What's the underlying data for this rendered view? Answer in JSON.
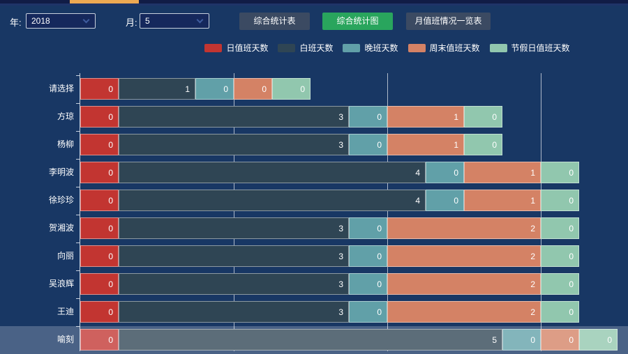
{
  "toolbar": {
    "year_label": "年:",
    "year_value": "2018",
    "month_label": "月:",
    "month_value": "5",
    "buttons": [
      {
        "label": "综合统计表",
        "active": false
      },
      {
        "label": "综合统计图",
        "active": true
      },
      {
        "label": "月值班情况一览表",
        "active": false
      }
    ]
  },
  "colors": {
    "background": "#183764",
    "active_tab": "#eda952",
    "active_button": "#29a55d",
    "button": "#3b4a62"
  },
  "chart_data": {
    "type": "bar",
    "orientation": "horizontal",
    "stacked": true,
    "legend_position": "top",
    "grid": true,
    "x_gridlines_units": [
      2,
      4,
      6
    ],
    "xlim": [
      0,
      7.15
    ],
    "categories": [
      "请选择",
      "方琼",
      "杨柳",
      "李明波",
      "徐珍珍",
      "贺湘波",
      "向丽",
      "吴浪辉",
      "王迪",
      "喻刻"
    ],
    "series": [
      {
        "name": "日值班天数",
        "color": "#c23531",
        "values": [
          0,
          0,
          0,
          0,
          0,
          0,
          0,
          0,
          0,
          0
        ]
      },
      {
        "name": "白班天数",
        "color": "#2f4554",
        "values": [
          1,
          3,
          3,
          4,
          4,
          3,
          3,
          3,
          3,
          5
        ]
      },
      {
        "name": "晚班天数",
        "color": "#61a0a8",
        "values": [
          0,
          0,
          0,
          0,
          0,
          0,
          0,
          0,
          0,
          0
        ]
      },
      {
        "name": "周末值班天数",
        "color": "#d48265",
        "values": [
          0,
          1,
          1,
          1,
          1,
          2,
          2,
          2,
          2,
          0
        ]
      },
      {
        "name": "节假日值班天数",
        "color": "#91c7ae",
        "values": [
          0,
          0,
          0,
          0,
          0,
          0,
          0,
          0,
          0,
          0
        ]
      }
    ],
    "highlighted_category": "喻刻",
    "zero_value_min_units": 0.5
  }
}
